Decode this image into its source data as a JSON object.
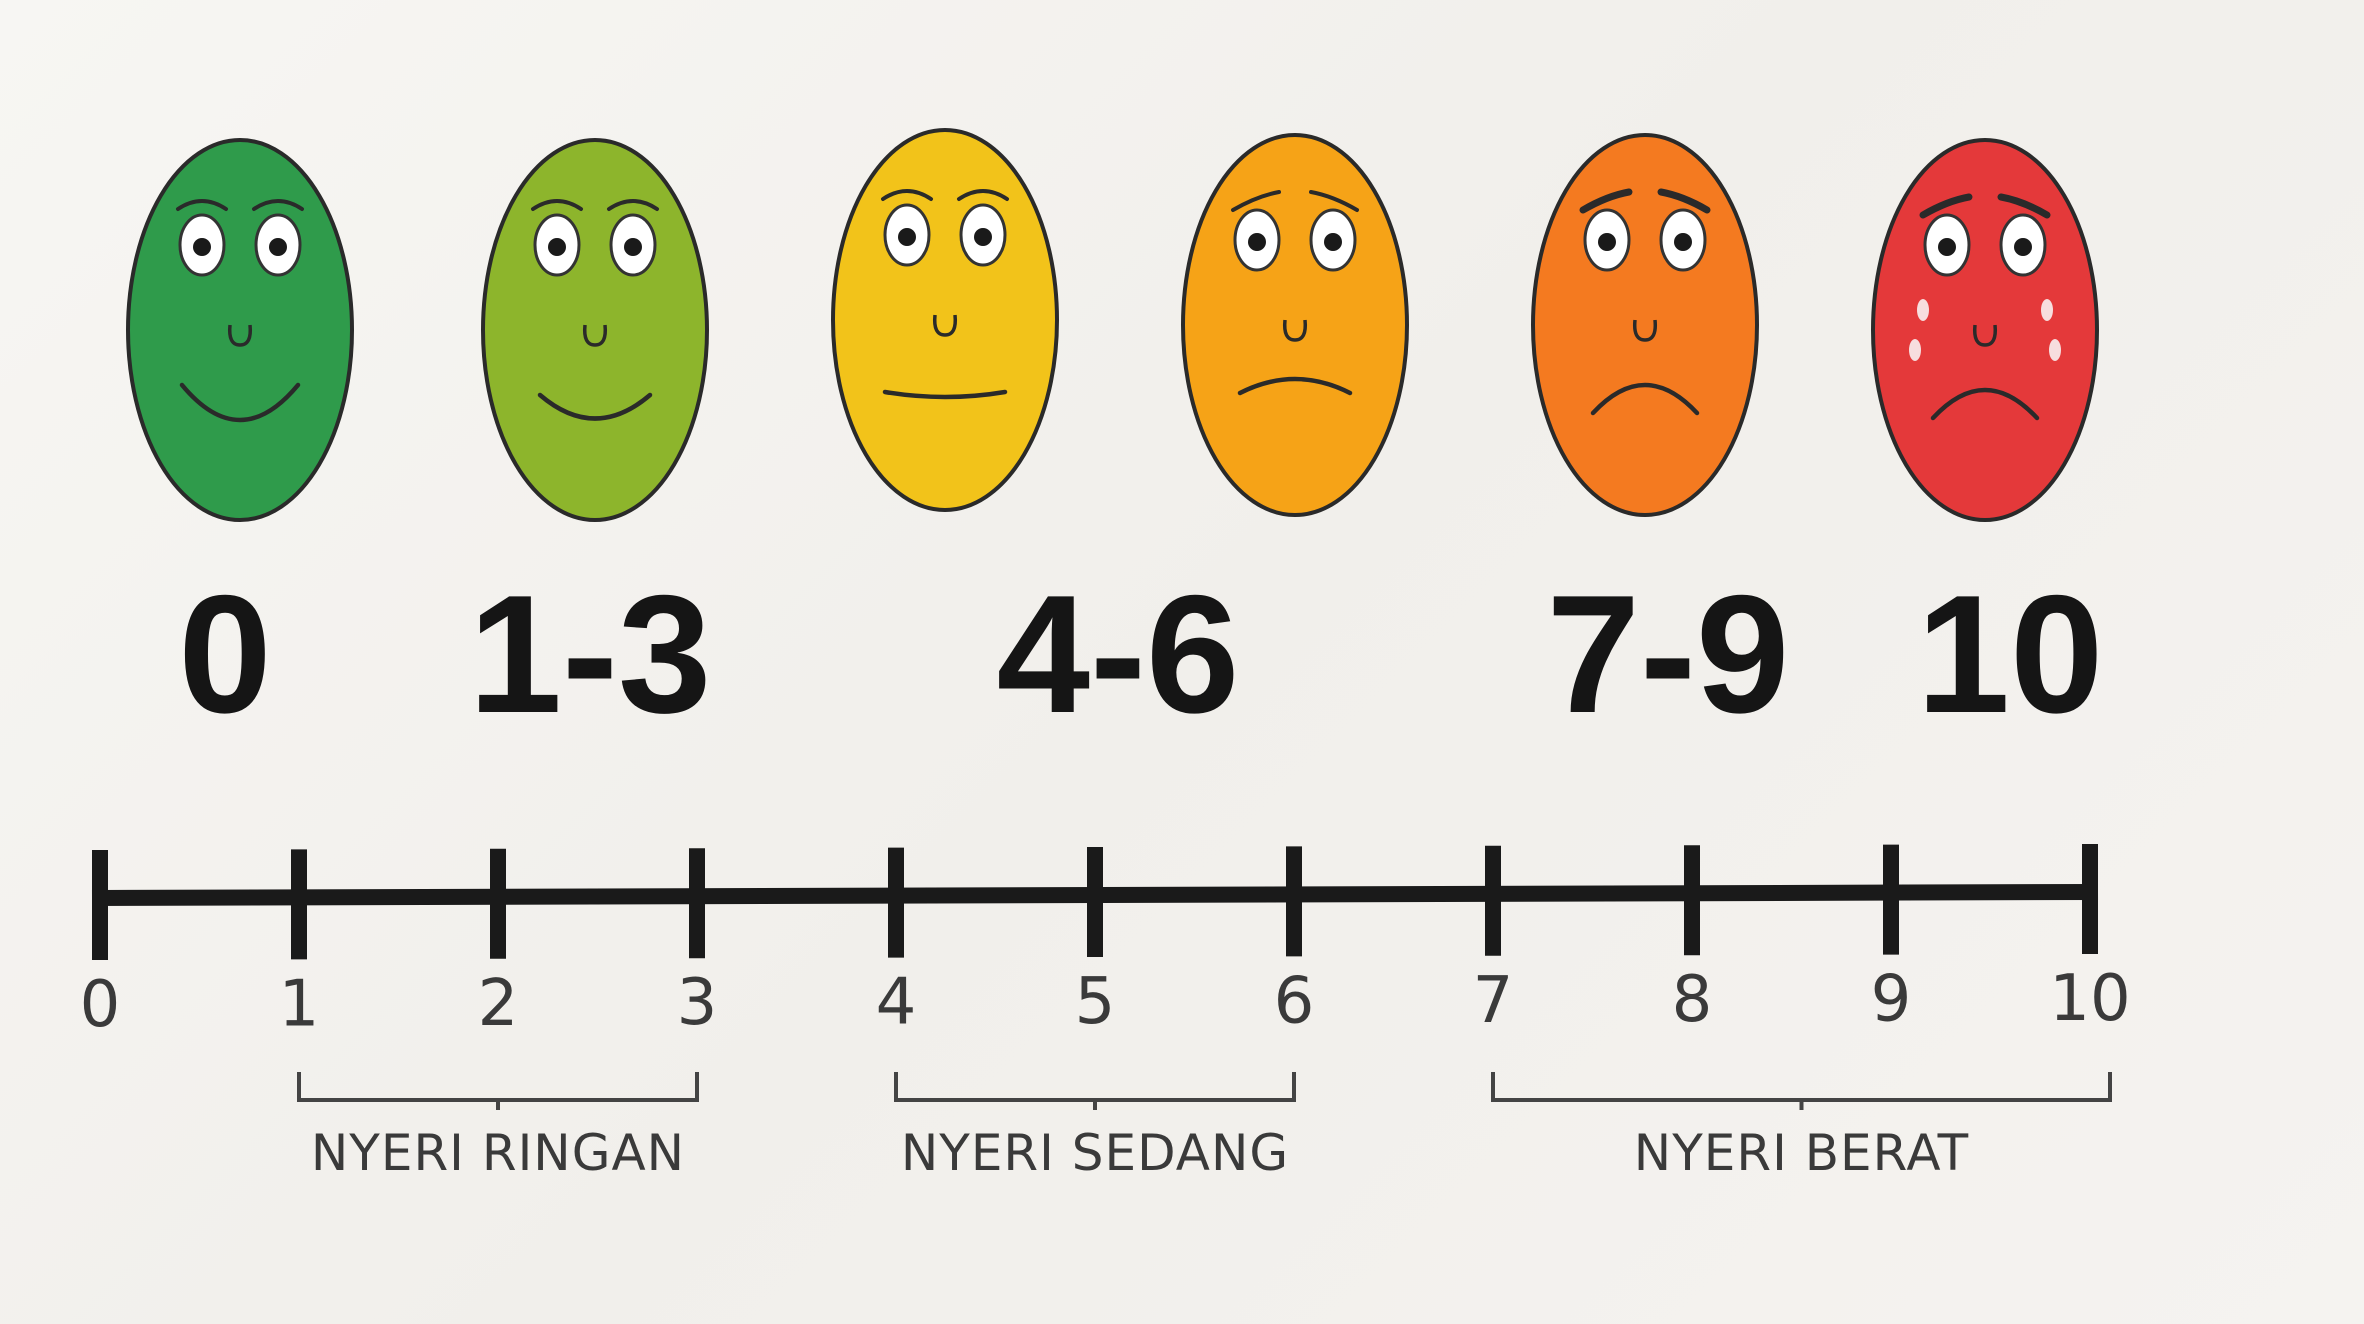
{
  "faces": [
    {
      "name": "face-0",
      "score_label": "0",
      "color": "#2f9b4b",
      "mood": "very-happy"
    },
    {
      "name": "face-1-3",
      "score_label": "1-3",
      "color": "#8db52c",
      "mood": "happy"
    },
    {
      "name": "face-4-6a",
      "score_label": "",
      "color": "#f2c31a",
      "mood": "neutral"
    },
    {
      "name": "face-4-6b",
      "score_label": "",
      "color": "#f6a317",
      "mood": "sad"
    },
    {
      "name": "face-7-9",
      "score_label": "7-9",
      "color": "#f47a20",
      "mood": "very-sad"
    },
    {
      "name": "face-10",
      "score_label": "10",
      "color": "#e4393a",
      "mood": "crying"
    }
  ],
  "group_labels": [
    "0",
    "1-3",
    "4-6",
    "7-9",
    "10"
  ],
  "scale": {
    "ticks": [
      "0",
      "1",
      "2",
      "3",
      "4",
      "5",
      "6",
      "7",
      "8",
      "9",
      "10"
    ],
    "min": 0,
    "max": 10
  },
  "ranges": [
    {
      "label": "NYERI RINGAN",
      "from": 1,
      "to": 3
    },
    {
      "label": "NYERI SEDANG",
      "from": 4,
      "to": 6
    },
    {
      "label": "NYERI BERAT",
      "from": 7,
      "to": 10
    }
  ],
  "line_color": "#1a1a1a"
}
